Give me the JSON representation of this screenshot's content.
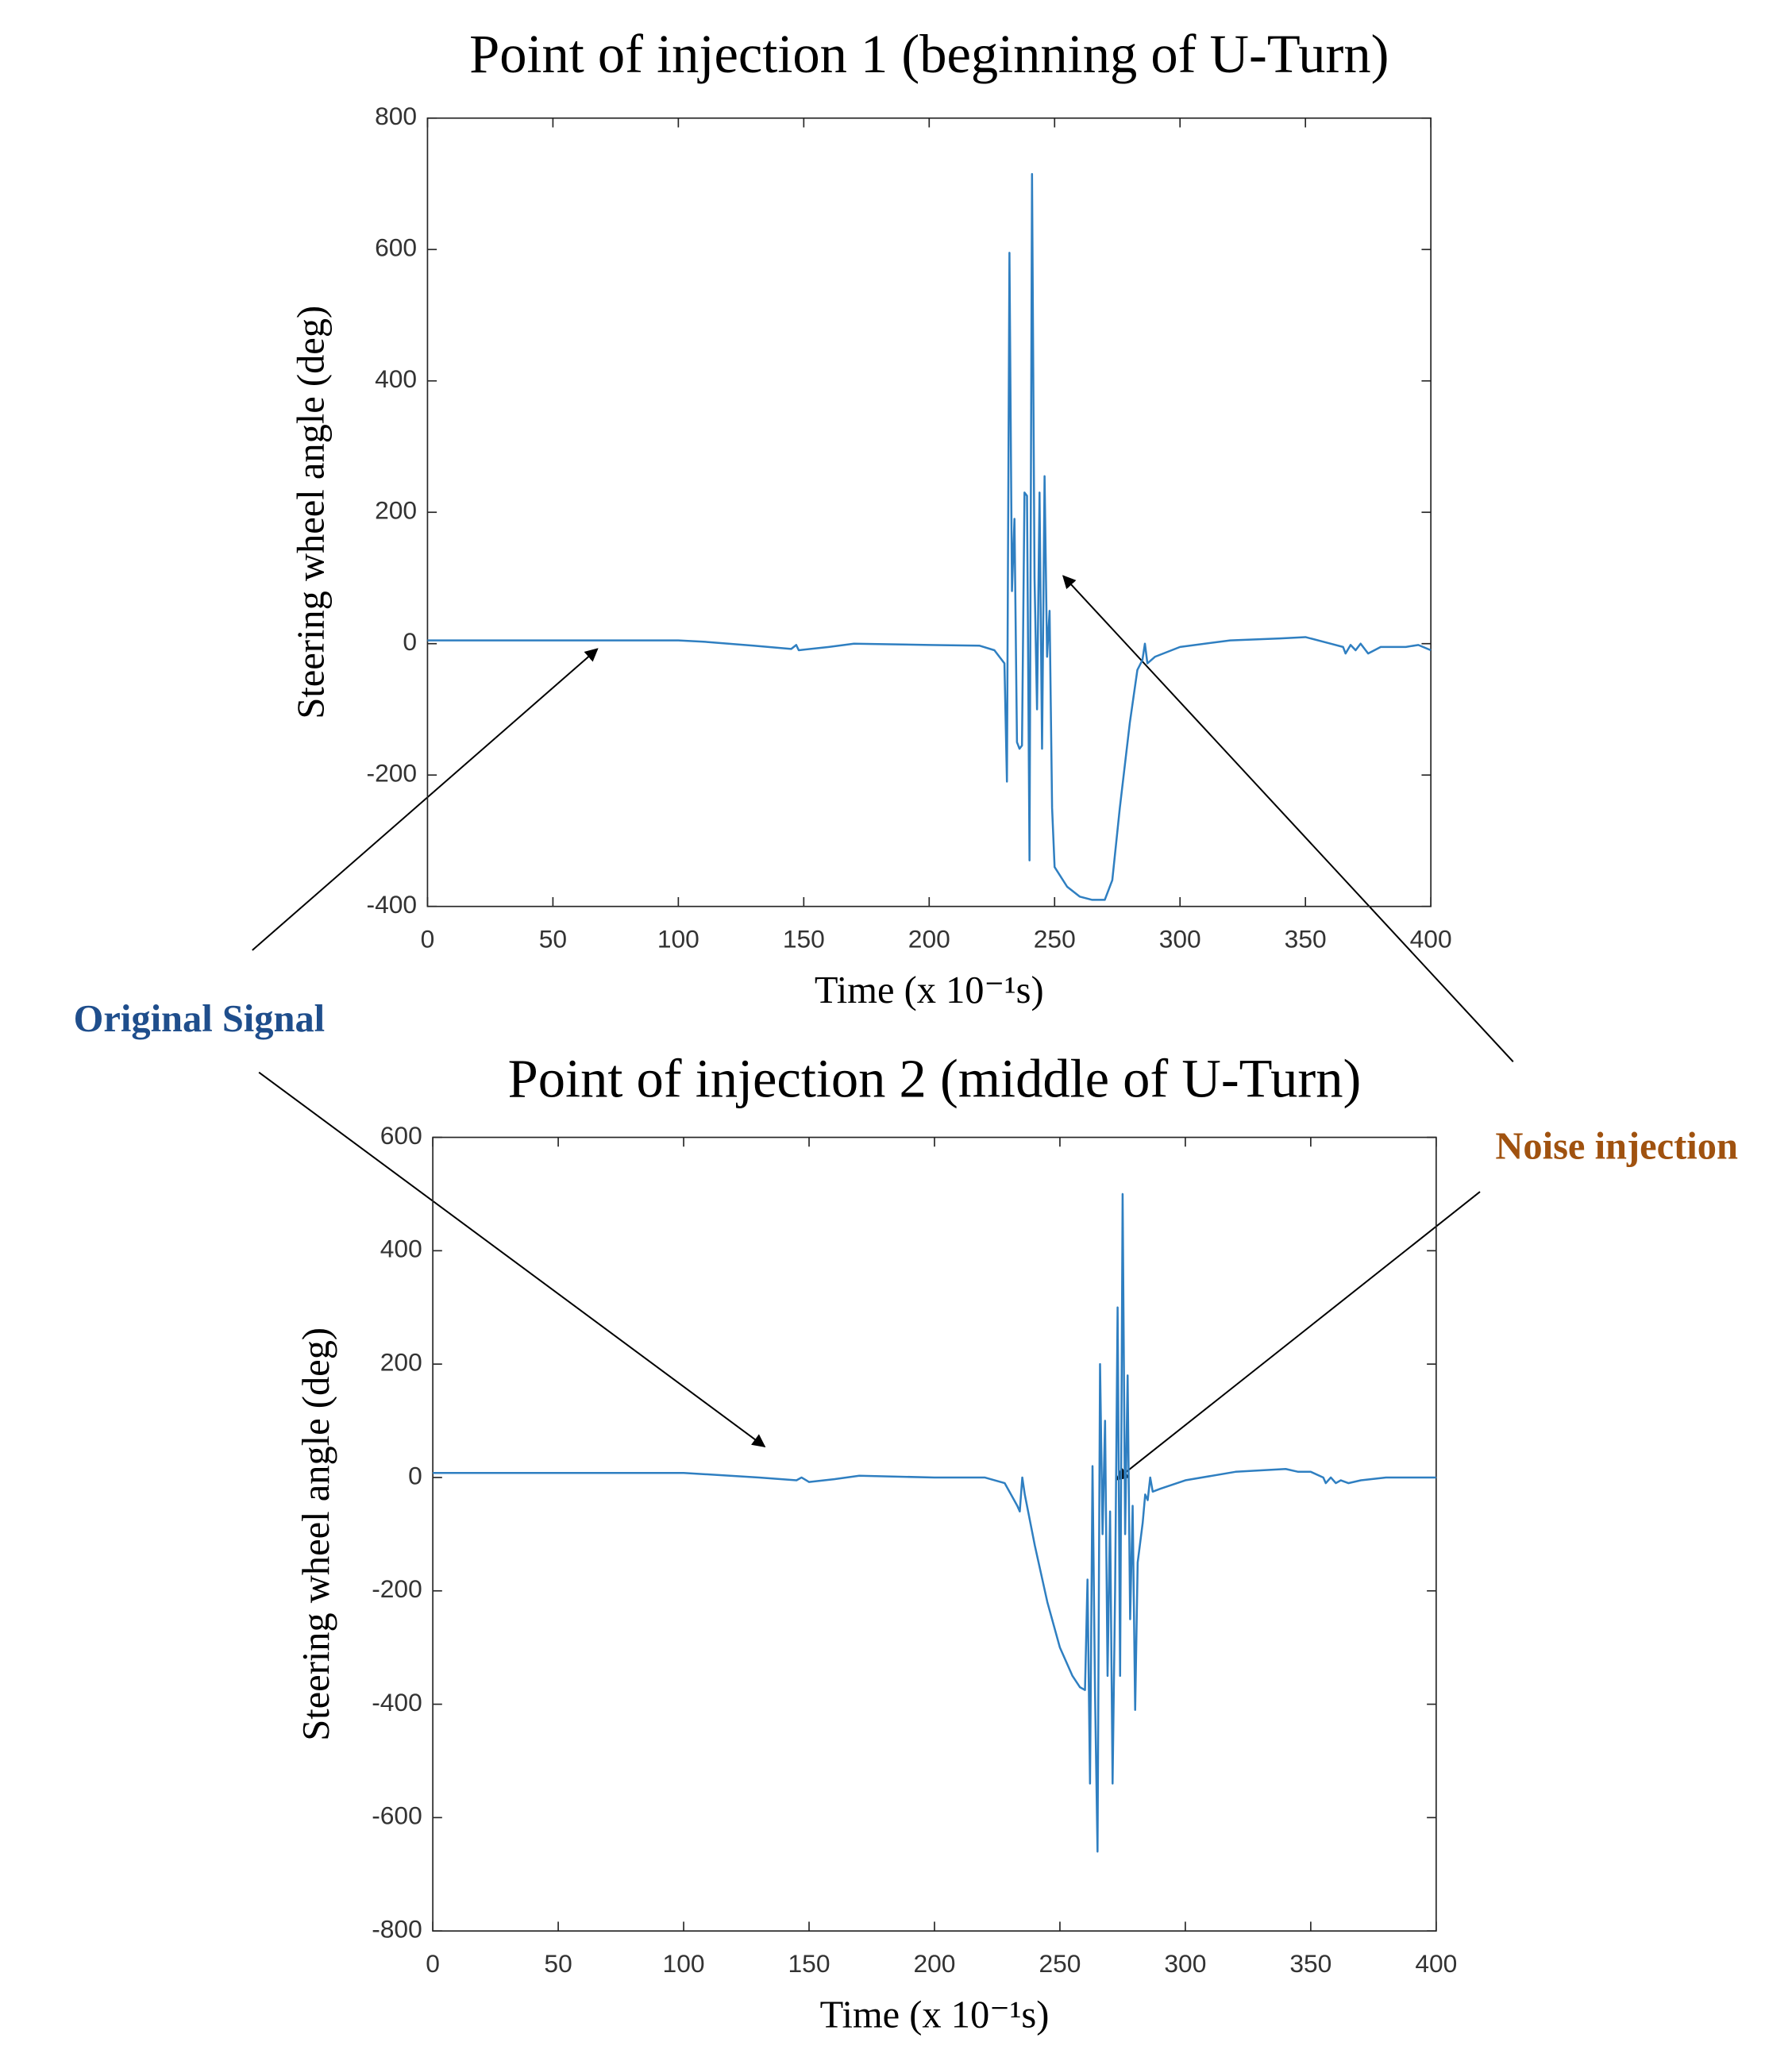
{
  "chart_data": [
    {
      "type": "line",
      "title": "Point of injection 1 (beginning of U-Turn)",
      "xlabel": "Time (x 10⁻¹s)",
      "ylabel": "Steering wheel angle (deg)",
      "x": [
        0,
        50,
        100,
        110,
        130,
        145,
        147,
        148,
        160,
        170,
        200,
        220,
        226,
        230,
        231,
        232,
        233,
        234,
        235,
        236,
        237,
        238,
        239,
        240,
        241,
        242,
        243,
        244,
        245,
        246,
        247,
        248,
        249,
        250,
        255,
        260,
        265,
        270,
        273,
        276,
        280,
        283,
        285,
        286,
        287,
        290,
        300,
        320,
        340,
        350,
        360,
        365,
        366,
        368,
        370,
        372,
        375,
        380,
        390,
        395,
        400
      ],
      "series": [
        {
          "color": "#2f7fc1",
          "values": [
            5,
            5,
            5,
            3,
            -3,
            -8,
            -2,
            -10,
            -5,
            0,
            -2,
            -3,
            -10,
            -30,
            -210,
            595,
            80,
            190,
            -150,
            -160,
            -155,
            230,
            225,
            -330,
            715,
            100,
            -100,
            230,
            -160,
            255,
            -20,
            50,
            -250,
            -340,
            -370,
            -385,
            -390,
            -390,
            -360,
            -250,
            -120,
            -40,
            -25,
            0,
            -30,
            -20,
            -5,
            5,
            8,
            10,
            0,
            -5,
            -15,
            -2,
            -10,
            0,
            -15,
            -5,
            -5,
            -2,
            -10
          ]
        }
      ],
      "xlim": [
        0,
        400
      ],
      "xticks": [
        0,
        50,
        100,
        150,
        200,
        250,
        300,
        350,
        400
      ],
      "ylim": [
        -400,
        800
      ],
      "yticks": [
        -400,
        -200,
        0,
        200,
        400,
        600,
        800
      ]
    },
    {
      "type": "line",
      "title": "Point of injection 2 (middle of U-Turn)",
      "xlabel": "Time (x 10⁻¹s)",
      "ylabel": "Steering wheel angle (deg)",
      "x": [
        0,
        100,
        130,
        145,
        147,
        150,
        160,
        170,
        200,
        220,
        228,
        233,
        234,
        235,
        236,
        240,
        245,
        250,
        255,
        258,
        260,
        261,
        262,
        263,
        264,
        265,
        266,
        267,
        268,
        269,
        270,
        271,
        272,
        273,
        274,
        275,
        276,
        277,
        278,
        279,
        280,
        281,
        283,
        284,
        285,
        286,
        287,
        290,
        300,
        320,
        340,
        345,
        350,
        355,
        356,
        358,
        360,
        362,
        365,
        370,
        380,
        400
      ],
      "series": [
        {
          "color": "#2f7fc1",
          "values": [
            8,
            8,
            0,
            -5,
            0,
            -8,
            -3,
            3,
            0,
            0,
            -10,
            -50,
            -60,
            0,
            -30,
            -120,
            -220,
            -300,
            -350,
            -370,
            -375,
            -180,
            -540,
            20,
            -380,
            -660,
            200,
            -100,
            100,
            -350,
            -60,
            -540,
            -200,
            300,
            -350,
            500,
            -100,
            180,
            -250,
            -50,
            -410,
            -150,
            -80,
            -30,
            -40,
            0,
            -25,
            -20,
            -5,
            10,
            15,
            10,
            10,
            0,
            -10,
            0,
            -10,
            -5,
            -10,
            -5,
            0,
            0
          ]
        }
      ],
      "xlim": [
        0,
        400
      ],
      "xticks": [
        0,
        50,
        100,
        150,
        200,
        250,
        300,
        350,
        400
      ],
      "ylim": [
        -800,
        600
      ],
      "yticks": [
        -800,
        -600,
        -400,
        -200,
        0,
        200,
        400,
        600
      ]
    }
  ],
  "annotations": [
    {
      "text": "Original Signal",
      "color": "#1f4e8c"
    },
    {
      "text": "Noise injection",
      "color": "#a0520f"
    }
  ]
}
